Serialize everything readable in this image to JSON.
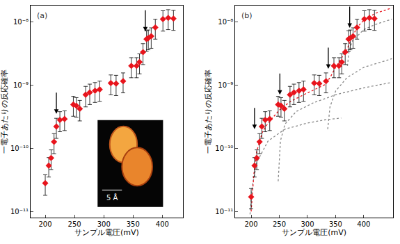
{
  "chart_data": [
    {
      "type": "scatter",
      "title": "(a)",
      "x_label": "サンプル電圧(mV)",
      "y_label": "一電子あたりの反応確率",
      "log": "y",
      "grid": false,
      "xlim": [
        175,
        435
      ],
      "xticks": [
        200,
        250,
        300,
        350,
        400
      ],
      "ylim": [
        8e-12,
        1.8e-08
      ],
      "yticks": [
        {
          "value": 1e-11,
          "label": "10⁻¹¹"
        },
        {
          "value": 1e-10,
          "label": "10⁻¹⁰"
        },
        {
          "value": 1e-09,
          "label": "10⁻⁹"
        },
        {
          "value": 1e-08,
          "label": "10⁻⁸"
        }
      ],
      "series": [
        {
          "type": "scatter",
          "color": "#e8141c",
          "marker": "diamond",
          "x": [
            200,
            206,
            210,
            215,
            219,
            225,
            233,
            248,
            253,
            259,
            269,
            276,
            285,
            293,
            312,
            321,
            333,
            347,
            356,
            361,
            367,
            373,
            376,
            381,
            388,
            401,
            410,
            419
          ],
          "values": [
            2.8e-11,
            5.3e-11,
            7e-11,
            1.26e-10,
            2.2e-10,
            2.8e-10,
            2.9e-10,
            4.9e-10,
            4.7e-10,
            4.2e-10,
            7e-10,
            7.6e-10,
            8.1e-10,
            8.5e-10,
            1.07e-09,
            1.05e-09,
            1.15e-09,
            2e-09,
            2e-09,
            2.3e-09,
            3.3e-09,
            5.3e-09,
            5.5e-09,
            5.9e-09,
            8.1e-09,
            1.1e-08,
            1.15e-08,
            1.12e-08
          ],
          "errors": [
            1e-11,
            1.8e-11,
            2.4e-11,
            4.4e-11,
            7.7e-11,
            9.8e-11,
            1e-10,
            1.7e-10,
            1.6e-10,
            1.5e-10,
            2.5e-10,
            2.7e-10,
            2.8e-10,
            3e-10,
            3.7e-10,
            3.7e-10,
            4e-10,
            7e-10,
            7e-10,
            8e-10,
            1.2e-09,
            1.9e-09,
            1.9e-09,
            2.1e-09,
            2.8e-09,
            3.9e-09,
            4e-09,
            3.9e-09
          ]
        }
      ],
      "arrows": [
        {
          "x": 219,
          "y": 3.5e-10
        },
        {
          "x": 371,
          "y": 7e-09
        }
      ],
      "inset": {
        "scale_label": "5 Å"
      }
    },
    {
      "type": "scatter",
      "title": "(b)",
      "x_label": "サンプル電圧(mV)",
      "y_label": "一電子あたりの反応確率",
      "log": "y",
      "grid": false,
      "xlim": [
        172,
        452
      ],
      "xticks": [
        200,
        250,
        300,
        350,
        400
      ],
      "ylim": [
        8e-12,
        1.8e-08
      ],
      "yticks": [
        {
          "value": 1e-11,
          "label": "10⁻¹¹"
        },
        {
          "value": 1e-10,
          "label": "10⁻¹⁰"
        },
        {
          "value": 1e-09,
          "label": "10⁻⁹"
        },
        {
          "value": 1e-08,
          "label": "10⁻⁸"
        }
      ],
      "series": [
        {
          "type": "line",
          "color": "#888888",
          "line_style": "dotted",
          "x": [
            198,
            202,
            210,
            230,
            260,
            300,
            330,
            360
          ],
          "values": [
            9e-12,
            2.5e-11,
            6e-11,
            1.3e-10,
            2e-10,
            2.5e-10,
            2.8e-10,
            3e-10
          ]
        },
        {
          "type": "line",
          "color": "#888888",
          "line_style": "dotted",
          "x": [
            248,
            252,
            260,
            280,
            310,
            350,
            400,
            450
          ],
          "values": [
            3e-11,
            1.3e-10,
            2.4e-10,
            3.8e-10,
            5.2e-10,
            7e-10,
            9e-10,
            1.1e-09
          ]
        },
        {
          "type": "line",
          "color": "#888888",
          "line_style": "dotted",
          "x": [
            336,
            340,
            350,
            370,
            400,
            450
          ],
          "values": [
            2e-10,
            4.5e-10,
            8e-10,
            1.3e-09,
            1.9e-09,
            2.6e-09
          ]
        },
        {
          "type": "line",
          "color": "#888888",
          "line_style": "dotted",
          "x": [
            371,
            374,
            380,
            400,
            420,
            450
          ],
          "values": [
            2e-09,
            3.5e-09,
            5e-09,
            7.5e-09,
            9e-09,
            1.1e-08
          ]
        },
        {
          "type": "line",
          "color": "#e8141c",
          "line_style": "dotted",
          "x": [
            200,
            205,
            210,
            220,
            230,
            250,
            270,
            300,
            330,
            340,
            350,
            360,
            370,
            380,
            390,
            400,
            420,
            450
          ],
          "values": [
            1e-11,
            4e-11,
            9e-11,
            1.8e-10,
            2.5e-10,
            4e-10,
            5.5e-10,
            7.5e-10,
            1e-09,
            1.3e-09,
            1.9e-09,
            2.6e-09,
            3.6e-09,
            6e-09,
            8.5e-09,
            1.05e-08,
            1.35e-08,
            1.65e-08
          ]
        },
        {
          "type": "scatter",
          "color": "#e8141c",
          "marker": "diamond",
          "x": [
            200,
            206,
            210,
            215,
            219,
            225,
            233,
            248,
            253,
            259,
            269,
            276,
            285,
            293,
            312,
            321,
            333,
            347,
            356,
            361,
            367,
            373,
            376,
            381,
            388,
            401,
            410,
            419
          ],
          "values": [
            1.7e-11,
            5.3e-11,
            7e-11,
            1.26e-10,
            2.2e-10,
            2.8e-10,
            2.9e-10,
            4.9e-10,
            4.7e-10,
            4.2e-10,
            7e-10,
            7.6e-10,
            8.1e-10,
            8.5e-10,
            1.07e-09,
            1.05e-09,
            1.15e-09,
            2e-09,
            2e-09,
            2.3e-09,
            3.3e-09,
            5.3e-09,
            5.5e-09,
            5.9e-09,
            8.1e-09,
            1.1e-08,
            1.15e-08,
            1.12e-08
          ],
          "errors": [
            6e-12,
            1.8e-11,
            2.4e-11,
            4.4e-11,
            7.7e-11,
            9.8e-11,
            1e-10,
            1.7e-10,
            1.6e-10,
            1.5e-10,
            2.5e-10,
            2.7e-10,
            2.8e-10,
            3e-10,
            3.7e-10,
            3.7e-10,
            4e-10,
            7e-10,
            7e-10,
            8e-10,
            1.2e-09,
            1.9e-09,
            1.9e-09,
            2.1e-09,
            2.8e-09,
            3.9e-09,
            4e-09,
            3.9e-09
          ]
        }
      ],
      "arrows": [
        {
          "x": 206,
          "y": 2e-10
        },
        {
          "x": 251,
          "y": 7e-10
        },
        {
          "x": 337,
          "y": 1.8e-09
        },
        {
          "x": 375,
          "y": 8e-09
        }
      ]
    }
  ]
}
